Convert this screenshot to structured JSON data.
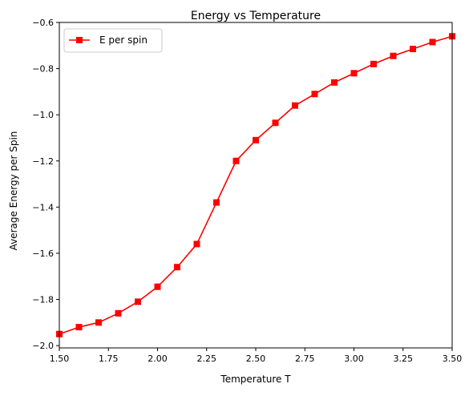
{
  "chart_data": {
    "type": "line",
    "title": "Energy vs Temperature",
    "xlabel": "Temperature T",
    "ylabel": "Average Energy per Spin",
    "xlim": [
      1.5,
      3.5
    ],
    "ylim": [
      -2.01,
      -0.6
    ],
    "xticks": [
      1.5,
      1.75,
      2.0,
      2.25,
      2.5,
      2.75,
      3.0,
      3.25,
      3.5
    ],
    "xtick_labels": [
      "1.50",
      "1.75",
      "2.00",
      "2.25",
      "2.50",
      "2.75",
      "3.00",
      "3.25",
      "3.50"
    ],
    "yticks": [
      -2.0,
      -1.8,
      -1.6,
      -1.4,
      -1.2,
      -1.0,
      -0.8,
      -0.6
    ],
    "ytick_labels": [
      "−2.0",
      "−1.8",
      "−1.6",
      "−1.4",
      "−1.2",
      "−1.0",
      "−0.8",
      "−0.6"
    ],
    "grid": false,
    "legend_position": "upper-left",
    "series": [
      {
        "name": "E per spin",
        "color": "#ff0000",
        "marker": "square",
        "x": [
          1.5,
          1.6,
          1.7,
          1.8,
          1.9,
          2.0,
          2.1,
          2.2,
          2.3,
          2.4,
          2.5,
          2.6,
          2.7,
          2.8,
          2.9,
          3.0,
          3.1,
          3.2,
          3.3,
          3.4,
          3.5
        ],
        "y": [
          -1.95,
          -1.92,
          -1.9,
          -1.86,
          -1.81,
          -1.745,
          -1.66,
          -1.56,
          -1.38,
          -1.2,
          -1.11,
          -1.035,
          -0.96,
          -0.91,
          -0.86,
          -0.82,
          -0.78,
          -0.745,
          -0.715,
          -0.685,
          -0.66
        ]
      }
    ]
  }
}
